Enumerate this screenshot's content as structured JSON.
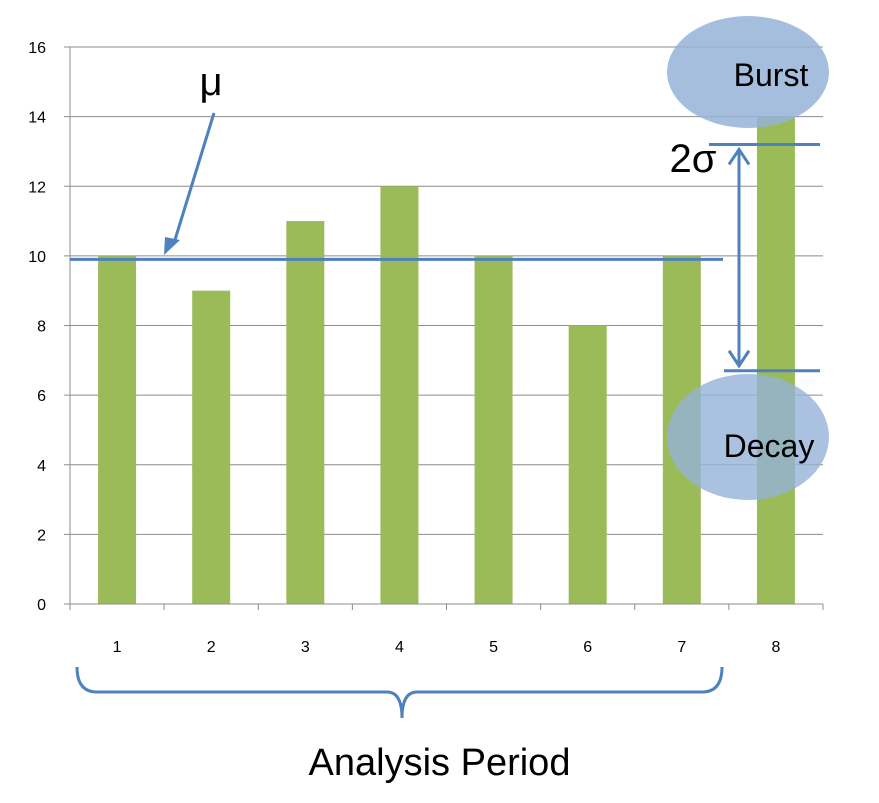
{
  "chart_data": {
    "type": "bar",
    "categories": [
      "1",
      "2",
      "3",
      "4",
      "5",
      "6",
      "7",
      "8"
    ],
    "values": [
      10,
      9,
      11,
      12,
      10,
      8,
      10,
      14
    ],
    "ylim": [
      0,
      16
    ],
    "yticks": [
      0,
      2,
      4,
      6,
      8,
      10,
      12,
      14,
      16
    ],
    "grid": true,
    "bar_color": "#9bbb59",
    "reference_lines": {
      "mean": 9.9,
      "upper": 13.2,
      "lower": 6.7,
      "color": "#4f81bd"
    },
    "annotations": {
      "mean_label": "μ",
      "sigma_label": "2σ",
      "burst_label": "Burst",
      "decay_label": "Decay",
      "period_label": "Analysis Period",
      "ellipse_color": "#95b3d7"
    }
  }
}
